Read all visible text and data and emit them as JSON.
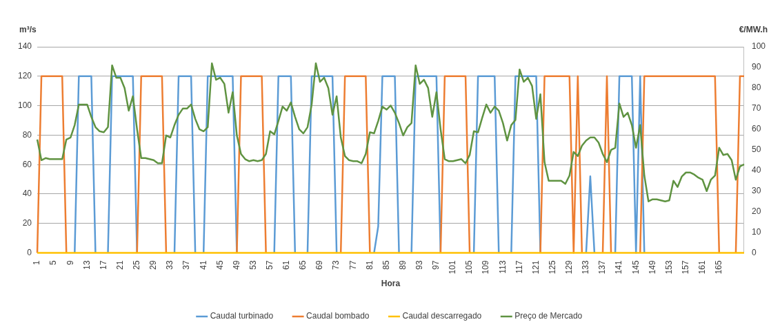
{
  "chart_data": {
    "type": "line",
    "xlabel": "Hora",
    "ylabel": "m³/s",
    "y2label": "€/MW.h",
    "categories": [
      "1",
      null,
      null,
      null,
      "5",
      null,
      null,
      null,
      "9",
      null,
      null,
      null,
      "13",
      null,
      null,
      null,
      "17",
      null,
      null,
      null,
      "21",
      null,
      null,
      null,
      "25",
      null,
      null,
      null,
      "29",
      null,
      null,
      null,
      "33",
      null,
      null,
      null,
      "37",
      null,
      null,
      null,
      "41",
      null,
      null,
      null,
      "45",
      null,
      null,
      null,
      "49",
      null,
      null,
      null,
      "53",
      null,
      null,
      null,
      "57",
      null,
      null,
      null,
      "61",
      null,
      null,
      null,
      "65",
      null,
      null,
      null,
      "69",
      null,
      null,
      null,
      "73",
      null,
      null,
      null,
      "77",
      null,
      null,
      null,
      "81",
      null,
      null,
      null,
      "85",
      null,
      null,
      null,
      "89",
      null,
      null,
      null,
      "93",
      null,
      null,
      null,
      "97",
      null,
      null,
      null,
      "101",
      null,
      null,
      null,
      "105",
      null,
      null,
      null,
      "109",
      null,
      null,
      null,
      "113",
      null,
      null,
      null,
      "117",
      null,
      null,
      null,
      "121",
      null,
      null,
      null,
      "125",
      null,
      null,
      null,
      "129",
      null,
      null,
      null,
      "133",
      null,
      null,
      null,
      "137",
      null,
      null,
      null,
      "141",
      null,
      null,
      null,
      "145",
      null,
      null,
      null,
      "149",
      null,
      null,
      null,
      "153",
      null,
      null,
      null,
      "157",
      null,
      null,
      null,
      "161",
      null,
      null,
      null,
      "165",
      null,
      null,
      null,
      null,
      null,
      null
    ],
    "series": [
      {
        "name": "Caudal turbinado",
        "color": "#5b9bd5",
        "values": [
          null,
          null,
          null,
          null,
          null,
          null,
          null,
          null,
          null,
          0,
          120,
          120,
          120,
          120,
          0,
          null,
          null,
          0,
          120,
          120,
          120,
          120,
          120,
          120,
          0,
          null,
          null,
          null,
          null,
          null,
          null,
          null,
          null,
          0,
          120,
          120,
          120,
          120,
          0,
          null,
          0,
          120,
          120,
          120,
          120,
          120,
          120,
          120,
          0,
          null,
          null,
          null,
          null,
          null,
          null,
          null,
          null,
          0,
          120,
          120,
          120,
          120,
          0,
          null,
          null,
          0,
          120,
          120,
          120,
          120,
          120,
          120,
          0,
          null,
          null,
          null,
          null,
          null,
          null,
          null,
          null,
          0,
          18,
          120,
          120,
          120,
          120,
          0,
          null,
          null,
          0,
          120,
          120,
          120,
          120,
          120,
          120,
          0,
          null,
          null,
          null,
          null,
          null,
          null,
          null,
          0,
          120,
          120,
          120,
          120,
          120,
          0,
          null,
          null,
          0,
          120,
          120,
          120,
          120,
          120,
          120,
          0,
          null,
          null,
          null,
          null,
          null,
          null,
          null,
          null,
          null,
          null,
          0,
          52,
          0,
          null,
          null,
          null,
          null,
          0,
          120,
          120,
          120,
          120,
          0,
          120,
          0,
          null,
          null,
          null,
          null,
          null,
          null,
          null,
          null,
          null,
          null,
          null,
          null,
          null,
          null,
          null,
          null,
          null,
          null,
          null,
          null,
          null,
          null,
          null,
          null
        ]
      },
      {
        "name": "Caudal bombado",
        "color": "#ed7d31",
        "values": [
          0,
          120,
          120,
          120,
          120,
          120,
          120,
          0,
          null,
          null,
          null,
          null,
          null,
          null,
          null,
          null,
          null,
          null,
          null,
          null,
          null,
          null,
          null,
          null,
          0,
          120,
          120,
          120,
          120,
          120,
          120,
          0,
          null,
          null,
          null,
          null,
          null,
          null,
          null,
          null,
          null,
          null,
          null,
          null,
          null,
          null,
          null,
          null,
          0,
          120,
          120,
          120,
          120,
          120,
          120,
          0,
          null,
          null,
          null,
          null,
          null,
          null,
          null,
          null,
          null,
          null,
          null,
          null,
          null,
          null,
          null,
          null,
          null,
          0,
          120,
          120,
          120,
          120,
          120,
          120,
          0,
          null,
          null,
          null,
          null,
          null,
          null,
          null,
          null,
          null,
          null,
          null,
          null,
          null,
          null,
          null,
          null,
          0,
          120,
          120,
          120,
          120,
          120,
          120,
          0,
          null,
          null,
          null,
          null,
          null,
          null,
          null,
          null,
          null,
          null,
          null,
          null,
          null,
          null,
          null,
          null,
          0,
          120,
          120,
          120,
          120,
          120,
          120,
          120,
          0,
          120,
          0,
          null,
          null,
          null,
          null,
          0,
          120,
          0,
          null,
          null,
          null,
          null,
          null,
          null,
          0,
          120,
          120,
          120,
          120,
          120,
          120,
          120,
          120,
          120,
          120,
          120,
          120,
          120,
          120,
          120,
          120,
          120,
          120,
          0,
          null,
          null,
          null,
          0,
          120,
          120
        ]
      },
      {
        "name": "Caudal descarregado",
        "color": "#ffc000",
        "values": [
          0,
          0,
          0,
          0,
          0,
          0,
          0,
          0,
          0,
          0,
          0,
          0,
          0,
          0,
          0,
          0,
          0,
          0,
          0,
          0,
          0,
          0,
          0,
          0,
          0,
          0,
          0,
          0,
          0,
          0,
          0,
          0,
          0,
          0,
          0,
          0,
          0,
          0,
          0,
          0,
          0,
          0,
          0,
          0,
          0,
          0,
          0,
          0,
          0,
          0,
          0,
          0,
          0,
          0,
          0,
          0,
          0,
          0,
          0,
          0,
          0,
          0,
          0,
          0,
          0,
          0,
          0,
          0,
          0,
          0,
          0,
          0,
          0,
          0,
          0,
          0,
          0,
          0,
          0,
          0,
          0,
          0,
          0,
          0,
          0,
          0,
          0,
          0,
          0,
          0,
          0,
          0,
          0,
          0,
          0,
          0,
          0,
          0,
          0,
          0,
          0,
          0,
          0,
          0,
          0,
          0,
          0,
          0,
          0,
          0,
          0,
          0,
          0,
          0,
          0,
          0,
          0,
          0,
          0,
          0,
          0,
          0,
          0,
          0,
          0,
          0,
          0,
          0,
          0,
          0,
          0,
          0,
          0,
          0,
          0,
          0,
          0,
          0,
          0,
          0,
          0,
          0,
          0,
          0,
          0,
          0,
          0,
          0,
          0,
          0,
          0,
          0,
          0,
          0,
          0,
          0,
          0,
          0,
          0,
          0,
          0,
          0,
          0,
          0,
          0,
          0,
          0,
          0,
          0,
          0,
          0
        ]
      },
      {
        "name": "Preço de Mercado",
        "color": "#5f9341",
        "axis": "y2",
        "values": [
          55,
          45,
          46,
          45.5,
          45.5,
          45.5,
          45.5,
          55,
          56,
          62,
          72,
          72,
          72,
          66,
          61,
          59,
          58.5,
          61,
          91,
          85,
          85,
          80,
          69,
          76,
          60,
          46,
          46,
          45.5,
          45,
          43.5,
          43.5,
          57,
          56,
          62,
          67,
          70,
          70,
          72,
          65,
          60,
          59,
          61,
          92,
          84,
          85,
          82,
          68,
          78,
          57,
          48,
          45.5,
          44.5,
          45,
          44.5,
          45,
          48,
          59,
          57.5,
          64,
          71,
          69,
          73,
          66,
          60,
          58,
          61,
          72,
          92,
          83,
          85,
          80,
          67,
          76,
          56,
          47,
          45,
          44.5,
          44.5,
          43.5,
          48,
          58.5,
          58,
          64,
          71,
          69.5,
          71.5,
          68,
          63,
          57,
          61,
          63,
          91,
          82,
          84,
          80,
          66,
          78,
          60,
          45.5,
          44.5,
          44.5,
          45,
          45.5,
          43.5,
          47.5,
          59,
          58.5,
          65.5,
          72,
          68,
          71,
          69,
          63,
          54.5,
          62,
          64.5,
          89,
          83,
          85,
          81,
          65,
          77,
          44,
          35,
          35,
          35,
          35,
          33.5,
          37.5,
          49,
          47,
          52,
          54.5,
          56,
          56,
          53.5,
          48,
          44,
          50,
          51,
          72.5,
          66,
          68,
          62,
          51,
          62,
          37.5,
          25,
          26,
          26,
          25.5,
          25,
          25.5,
          35,
          32,
          37,
          39,
          39,
          38,
          36.5,
          35.5,
          30,
          35.5,
          37.5,
          51,
          47.5,
          48,
          45,
          35.5,
          42,
          43
        ]
      }
    ],
    "ylim": [
      0,
      140
    ],
    "yticks": [
      0,
      20,
      40,
      60,
      80,
      100,
      120,
      140
    ],
    "y2lim": [
      0,
      100
    ],
    "y2ticks": [
      0,
      10,
      20,
      30,
      40,
      50,
      60,
      70,
      80,
      90,
      100
    ],
    "grid": "y",
    "legend": "bottom",
    "marker": "none",
    "line_style": "solid"
  }
}
